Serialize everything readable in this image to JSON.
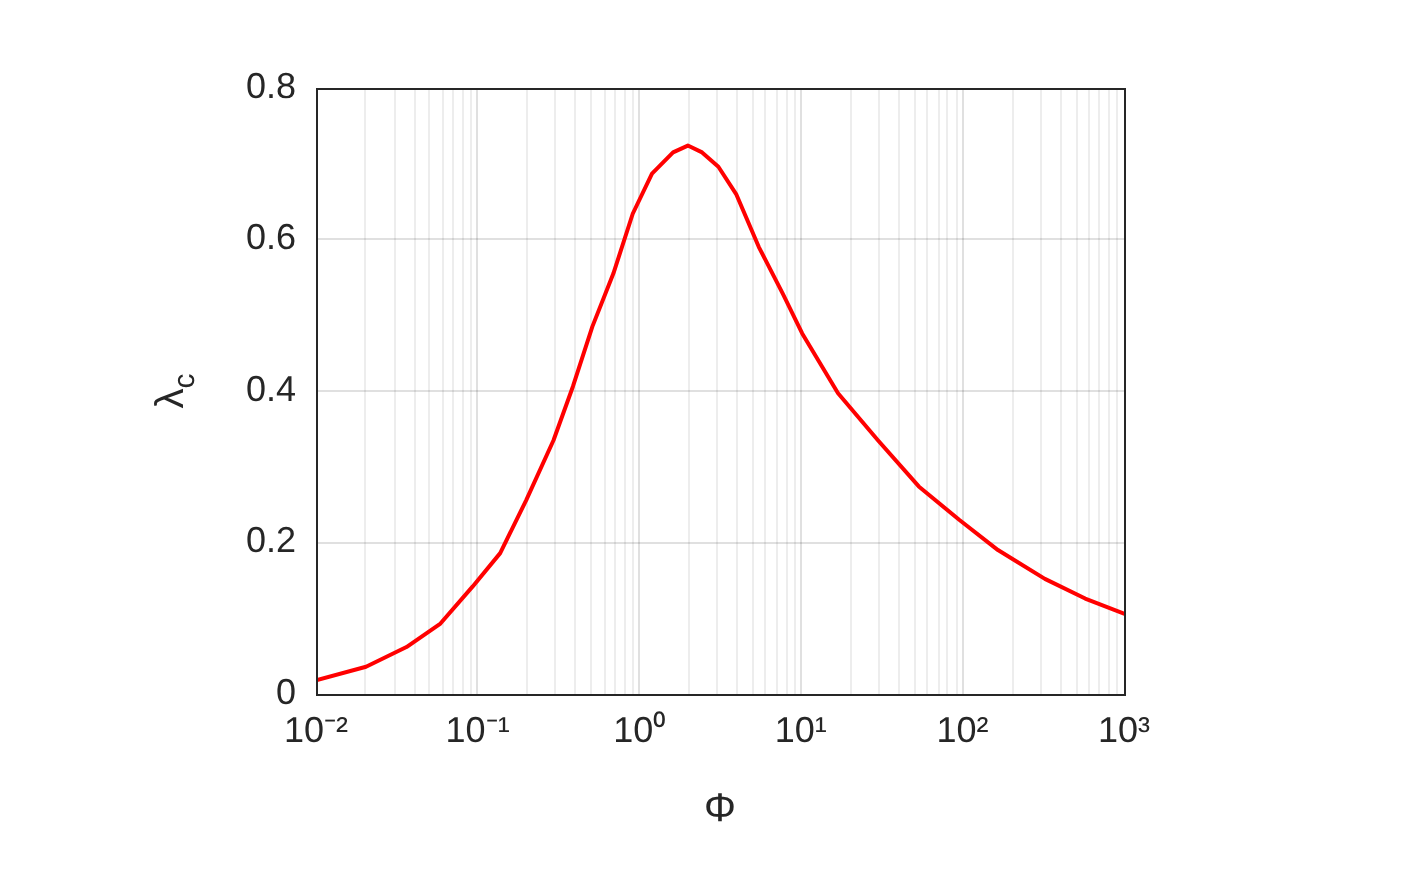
{
  "chart_data": {
    "type": "line",
    "xlabel": "Φ",
    "ylabel": "λ$_{c}$",
    "log": "x",
    "grid": true,
    "legend": false,
    "marker": "none",
    "line_style": "solid",
    "x": [
      0.01,
      0.0204,
      0.0363,
      0.0589,
      0.0933,
      0.138,
      0.2,
      0.295,
      0.389,
      0.513,
      0.692,
      0.912,
      1.2,
      1.62,
      2.0,
      2.45,
      3.09,
      3.98,
      5.5,
      7.76,
      10.2,
      17,
      30,
      53.7,
      95.5,
      166,
      324,
      575,
      1000
    ],
    "series": [
      {
        "color": "#ff0000",
        "values": [
          0.018,
          0.036,
          0.062,
          0.093,
          0.142,
          0.186,
          0.256,
          0.335,
          0.406,
          0.485,
          0.555,
          0.634,
          0.687,
          0.715,
          0.724,
          0.715,
          0.696,
          0.66,
          0.59,
          0.528,
          0.476,
          0.397,
          0.335,
          0.274,
          0.23,
          0.19,
          0.152,
          0.126,
          0.106
        ]
      }
    ],
    "xlim": [
      0.01,
      1000
    ],
    "xticks": [
      {
        "value": 0.01,
        "label": "10⁻²"
      },
      {
        "value": 0.1,
        "label": "10⁻¹"
      },
      {
        "value": 1,
        "label": "10⁰"
      },
      {
        "value": 10,
        "label": "10¹"
      },
      {
        "value": 100,
        "label": "10²"
      },
      {
        "value": 1000,
        "label": "10³"
      }
    ],
    "ylim": [
      0,
      0.8
    ],
    "yticks": [
      0,
      0.2,
      0.4,
      0.6,
      0.8
    ]
  }
}
